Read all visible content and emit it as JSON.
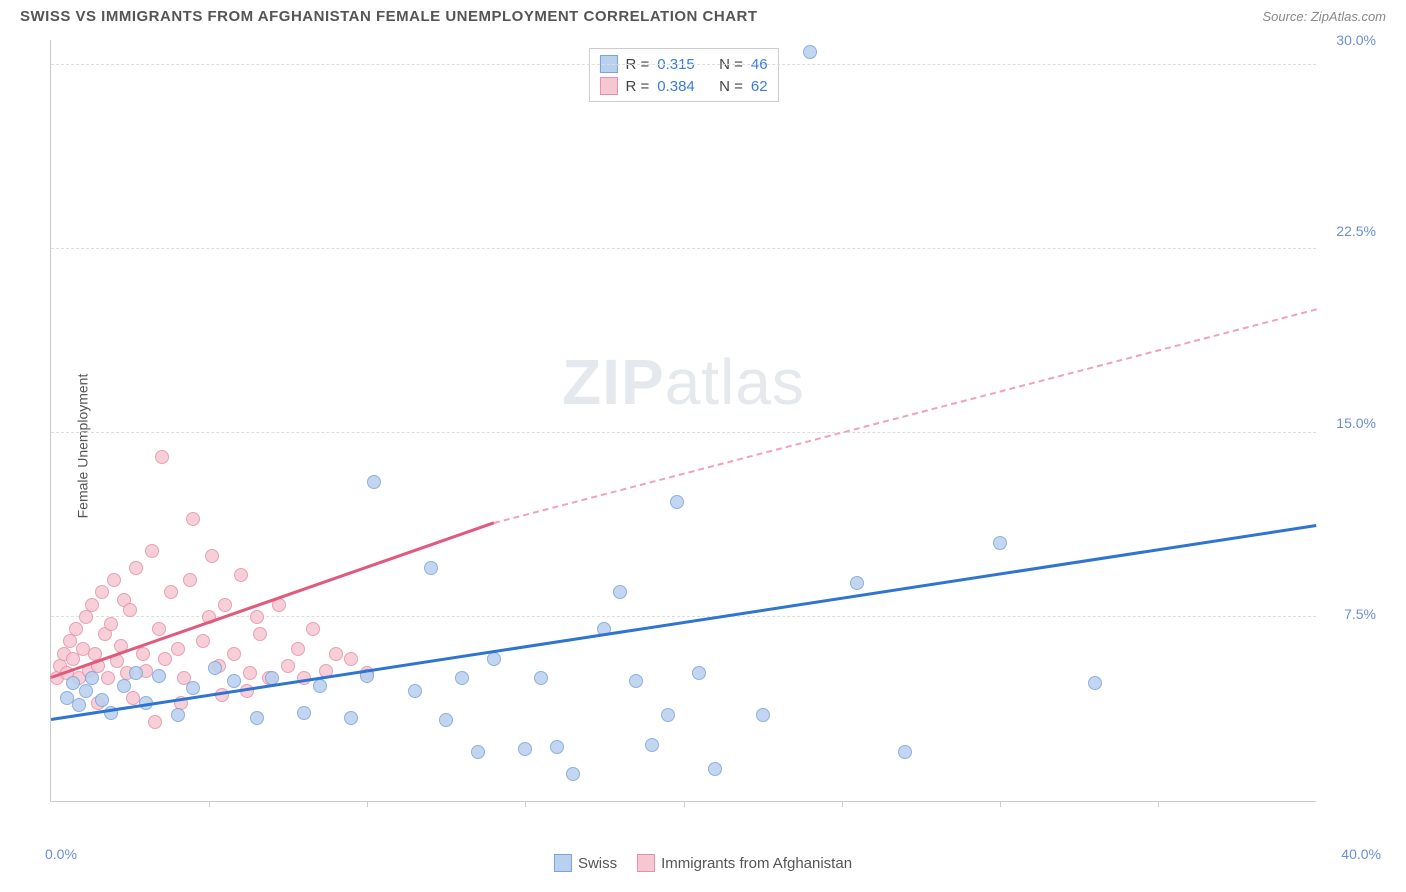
{
  "title": "SWISS VS IMMIGRANTS FROM AFGHANISTAN FEMALE UNEMPLOYMENT CORRELATION CHART",
  "source": "Source: ZipAtlas.com",
  "y_axis_label": "Female Unemployment",
  "watermark_zip": "ZIP",
  "watermark_atlas": "atlas",
  "chart": {
    "type": "scatter",
    "xlim": [
      0,
      40
    ],
    "ylim": [
      0,
      31
    ],
    "x_ticks": [
      5,
      10,
      15,
      20,
      25,
      30,
      35
    ],
    "y_ticks": [
      7.5,
      15.0,
      22.5,
      30.0
    ],
    "y_tick_labels": [
      "7.5%",
      "15.0%",
      "22.5%",
      "30.0%"
    ],
    "x_min_label": "0.0%",
    "x_max_label": "40.0%",
    "background_color": "#ffffff",
    "grid_color": "#dddddd",
    "axis_color": "#cccccc",
    "tick_label_color": "#6b8fd4"
  },
  "series": {
    "swiss": {
      "label": "Swiss",
      "color_fill": "#b9d0ef",
      "color_stroke": "#7aa3d9",
      "marker_size": 14,
      "r": "0.315",
      "n": "46",
      "trend": {
        "x1": 0,
        "y1": 3.3,
        "x2": 40,
        "y2": 11.2,
        "color": "#2e74d0",
        "width": 2.5
      },
      "points": [
        [
          0.5,
          4.2
        ],
        [
          0.7,
          4.8
        ],
        [
          0.9,
          3.9
        ],
        [
          1.1,
          4.5
        ],
        [
          1.3,
          5.0
        ],
        [
          1.6,
          4.1
        ],
        [
          1.9,
          3.6
        ],
        [
          2.3,
          4.7
        ],
        [
          2.7,
          5.2
        ],
        [
          3.0,
          4.0
        ],
        [
          3.4,
          5.1
        ],
        [
          4.0,
          3.5
        ],
        [
          4.5,
          4.6
        ],
        [
          5.2,
          5.4
        ],
        [
          5.8,
          4.9
        ],
        [
          6.5,
          3.4
        ],
        [
          7.0,
          5.0
        ],
        [
          8.0,
          3.6
        ],
        [
          8.5,
          4.7
        ],
        [
          9.5,
          3.4
        ],
        [
          10.0,
          5.1
        ],
        [
          10.2,
          13.0
        ],
        [
          11.5,
          4.5
        ],
        [
          12.0,
          9.5
        ],
        [
          12.5,
          3.3
        ],
        [
          13.0,
          5.0
        ],
        [
          13.5,
          2.0
        ],
        [
          14.0,
          5.8
        ],
        [
          15.0,
          2.1
        ],
        [
          15.5,
          5.0
        ],
        [
          16.0,
          2.2
        ],
        [
          16.5,
          1.1
        ],
        [
          17.5,
          7.0
        ],
        [
          18.0,
          8.5
        ],
        [
          18.5,
          4.9
        ],
        [
          19.0,
          2.3
        ],
        [
          19.5,
          3.5
        ],
        [
          19.8,
          12.2
        ],
        [
          20.5,
          5.2
        ],
        [
          21.0,
          1.3
        ],
        [
          22.5,
          3.5
        ],
        [
          24.0,
          30.5
        ],
        [
          25.5,
          8.9
        ],
        [
          27.0,
          2.0
        ],
        [
          30.0,
          10.5
        ],
        [
          33.0,
          4.8
        ]
      ]
    },
    "afghan": {
      "label": "Immigrants from Afghanistan",
      "color_fill": "#f6c7d2",
      "color_stroke": "#e690a8",
      "marker_size": 14,
      "r": "0.384",
      "n": "62",
      "trend": {
        "x1": 0,
        "y1": 5.0,
        "x2": 14,
        "y2": 11.3,
        "color": "#e15a7d",
        "width": 2.5
      },
      "trend_dash": {
        "x1": 14,
        "y1": 11.3,
        "x2": 40,
        "y2": 20.0,
        "color": "#f0a3b7"
      },
      "points": [
        [
          0.2,
          5.0
        ],
        [
          0.3,
          5.5
        ],
        [
          0.4,
          6.0
        ],
        [
          0.5,
          5.2
        ],
        [
          0.6,
          6.5
        ],
        [
          0.7,
          5.8
        ],
        [
          0.8,
          7.0
        ],
        [
          0.9,
          5.0
        ],
        [
          1.0,
          6.2
        ],
        [
          1.1,
          7.5
        ],
        [
          1.2,
          5.3
        ],
        [
          1.3,
          8.0
        ],
        [
          1.4,
          6.0
        ],
        [
          1.5,
          5.5
        ],
        [
          1.6,
          8.5
        ],
        [
          1.7,
          6.8
        ],
        [
          1.8,
          5.0
        ],
        [
          1.9,
          7.2
        ],
        [
          2.0,
          9.0
        ],
        [
          2.1,
          5.7
        ],
        [
          2.2,
          6.3
        ],
        [
          2.3,
          8.2
        ],
        [
          2.4,
          5.2
        ],
        [
          2.5,
          7.8
        ],
        [
          2.7,
          9.5
        ],
        [
          2.9,
          6.0
        ],
        [
          3.0,
          5.3
        ],
        [
          3.2,
          10.2
        ],
        [
          3.4,
          7.0
        ],
        [
          3.5,
          14.0
        ],
        [
          3.6,
          5.8
        ],
        [
          3.8,
          8.5
        ],
        [
          4.0,
          6.2
        ],
        [
          4.2,
          5.0
        ],
        [
          4.4,
          9.0
        ],
        [
          4.5,
          11.5
        ],
        [
          4.8,
          6.5
        ],
        [
          5.0,
          7.5
        ],
        [
          5.1,
          10.0
        ],
        [
          5.3,
          5.5
        ],
        [
          5.5,
          8.0
        ],
        [
          5.8,
          6.0
        ],
        [
          6.0,
          9.2
        ],
        [
          6.3,
          5.2
        ],
        [
          6.5,
          7.5
        ],
        [
          6.6,
          6.8
        ],
        [
          6.9,
          5.0
        ],
        [
          7.2,
          8.0
        ],
        [
          7.5,
          5.5
        ],
        [
          7.8,
          6.2
        ],
        [
          8.0,
          5.0
        ],
        [
          8.3,
          7.0
        ],
        [
          8.7,
          5.3
        ],
        [
          9.0,
          6.0
        ],
        [
          9.5,
          5.8
        ],
        [
          10.0,
          5.2
        ],
        [
          3.3,
          3.2
        ],
        [
          4.1,
          4.0
        ],
        [
          5.4,
          4.3
        ],
        [
          6.2,
          4.5
        ],
        [
          2.6,
          4.2
        ],
        [
          1.5,
          4.0
        ]
      ]
    }
  },
  "legend_top": {
    "r_label": "R = ",
    "n_label": "N = "
  }
}
